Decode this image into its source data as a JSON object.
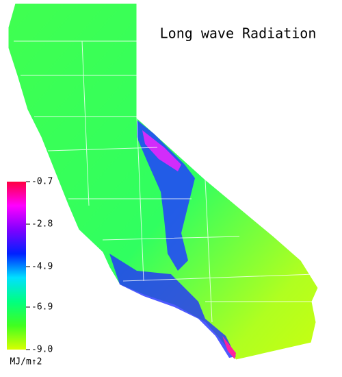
{
  "title": "Long wave Radiation",
  "colorbar": {
    "range": [
      -9,
      -0.7
    ],
    "ticks": [
      -0.7,
      -2.8,
      -4.9,
      -6.9,
      {
        "value": -9,
        "label": "-9.0"
      }
    ],
    "unit": "MJ/m↑2",
    "colors": [
      "#d8ff00",
      "#40ff20",
      "#00ff80",
      "#00e0ff",
      "#0020ff",
      "#8000ff",
      "#ff00ff",
      "#ff0040"
    ]
  }
}
